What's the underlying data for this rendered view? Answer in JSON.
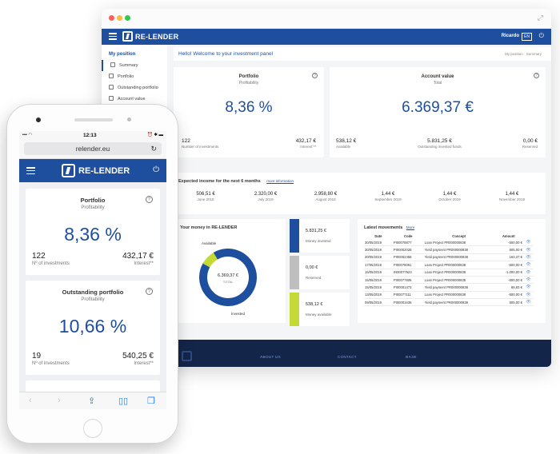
{
  "desktop": {
    "brand": "RE-LENDER",
    "user": "Ricardo",
    "lang": "EN",
    "sidebar": {
      "heading": "My position",
      "items": [
        "Summary",
        "Portfolio",
        "Outstanding portfolio",
        "Account value"
      ]
    },
    "welcome": "Hello! Welcome to your investment panel",
    "breadcrumb": "My position · Summary",
    "portfolio": {
      "title": "Portfolio",
      "subtitle": "Profitability",
      "value": "8,36 %",
      "investments_value": "122",
      "investments_label": "Number of investments",
      "interest_value": "432,17 €",
      "interest_label": "Interest **"
    },
    "account": {
      "title": "Account value",
      "subtitle": "Total",
      "value": "6.369,37 €",
      "available_value": "538,12 €",
      "available_label": "Available",
      "outstanding_value": "5.831,25 €",
      "outstanding_label": "Outstanding invested funds",
      "reserved_value": "0,00 €",
      "reserved_label": "Reserved"
    },
    "income": {
      "title": "Expected income for the next 6 months",
      "link": "more information",
      "months": [
        {
          "value": "506,51 €",
          "label": "June 2019"
        },
        {
          "value": "2.320,00 €",
          "label": "July 2019"
        },
        {
          "value": "2.958,80 €",
          "label": "August 2019"
        },
        {
          "value": "1,44 €",
          "label": "September 2019"
        },
        {
          "value": "1,44 €",
          "label": "October 2019"
        },
        {
          "value": "1,44 €",
          "label": "November 2019"
        }
      ]
    },
    "money": {
      "title": "Your money in RE-LENDER",
      "available_label": "Available",
      "invested_label": "Invested",
      "total_value": "6.369,37 €",
      "total_label": "TOTAL",
      "chart_data": {
        "type": "pie",
        "categories": [
          "Invested",
          "Available",
          "Reserved"
        ],
        "values": [
          5831.25,
          538.12,
          0.0
        ]
      },
      "tiles": [
        {
          "value": "5.831,25 €",
          "label": "Money invested",
          "color": "#1e4f9e"
        },
        {
          "value": "0,00 €",
          "label": "Reserved",
          "color": "#bfbfbf"
        },
        {
          "value": "538,12 €",
          "label": "Money available",
          "color": "#c4d936"
        }
      ]
    },
    "movements": {
      "title": "Latest movements",
      "link": "More",
      "headers": [
        "Date",
        "Code",
        "Concept",
        "Amount"
      ],
      "rows": [
        [
          "30/05/2019",
          "PI00078877",
          "Loan Project PR000000838",
          "-500,00 €"
        ],
        [
          "30/05/2019",
          "PI00002028",
          "Yield payment PR000000838",
          "505,00 €"
        ],
        [
          "20/05/2019",
          "PI00002458",
          "Yield payment PR000000838",
          "163,37 €"
        ],
        [
          "17/05/2019",
          "PI00078091",
          "Loan Project PR000000838",
          "-500,00 €"
        ],
        [
          "15/05/2019",
          "IN00077523",
          "Loan Project PR000000838",
          "-1.000,00 €"
        ],
        [
          "15/05/2019",
          "PI00077806",
          "Loan Project PR000000838",
          "-500,00 €"
        ],
        [
          "15/05/2019",
          "PI00001473",
          "Yield payment PR000000838",
          "68,83 €"
        ],
        [
          "13/05/2019",
          "PI00077111",
          "Loan Project PR000000838",
          "-500,00 €"
        ],
        [
          "09/05/2019",
          "PI00001636",
          "Yield payment PR000000838",
          "505,00 €"
        ]
      ]
    },
    "footer": [
      "ABOUT US",
      "CONTACT",
      "BASE"
    ]
  },
  "phone": {
    "time": "12:13",
    "url": "relender.eu",
    "brand": "RE-LENDER",
    "portfolio": {
      "title": "Portfolio",
      "subtitle": "Profitability",
      "value": "8,36 %",
      "investments_value": "122",
      "investments_label": "Nº of investments",
      "interest_value": "432,17 €",
      "interest_label": "Interest**"
    },
    "outstanding": {
      "title": "Outstanding portfolio",
      "subtitle": "Profitability",
      "value": "10,66 %",
      "investments_value": "19",
      "investments_label": "Nº of investments",
      "interest_value": "540,25 €",
      "interest_label": "Interest**"
    }
  }
}
